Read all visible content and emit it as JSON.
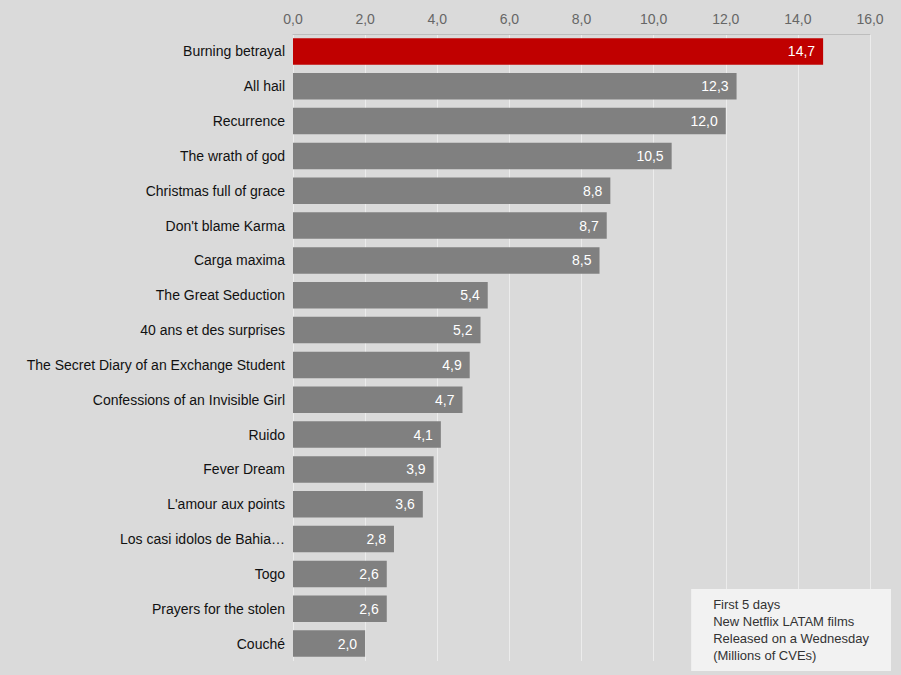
{
  "chart_data": {
    "type": "bar",
    "orientation": "horizontal",
    "annotation": "First 5 days\nNew Netflix LATAM films\nReleased on a Wednesday\n(Millions of CVEs)",
    "categories": [
      "Burning betrayal",
      "All hail",
      "Recurrence",
      "The wrath of god",
      "Christmas full of grace",
      "Don't blame Karma",
      "Carga maxima",
      "The Great Seduction",
      "40 ans et des surprises",
      "The Secret Diary of an Exchange Student",
      "Confessions of an Invisible Girl",
      "Ruido",
      "Fever Dream",
      "L'amour aux points",
      "Los casi idolos de Bahia…",
      "Togo",
      "Prayers for the stolen",
      "Couché"
    ],
    "values": [
      14.7,
      12.3,
      12.0,
      10.5,
      8.8,
      8.7,
      8.5,
      5.4,
      5.2,
      4.9,
      4.7,
      4.1,
      3.9,
      3.6,
      2.8,
      2.6,
      2.6,
      2.0
    ],
    "value_labels": [
      "14,7",
      "12,3",
      "12,0",
      "10,5",
      "8,8",
      "8,7",
      "8,5",
      "5,4",
      "5,2",
      "4,9",
      "4,7",
      "4,1",
      "3,9",
      "3,6",
      "2,8",
      "2,6",
      "2,6",
      "2,0"
    ],
    "colors": [
      "#c00000",
      "#808080",
      "#808080",
      "#808080",
      "#808080",
      "#808080",
      "#808080",
      "#808080",
      "#808080",
      "#808080",
      "#808080",
      "#808080",
      "#808080",
      "#808080",
      "#808080",
      "#808080",
      "#808080",
      "#808080"
    ],
    "xlim": [
      0,
      16
    ],
    "xticks": [
      {
        "value": 0,
        "label": "0,0"
      },
      {
        "value": 2,
        "label": "2,0"
      },
      {
        "value": 4,
        "label": "4,0"
      },
      {
        "value": 6,
        "label": "6,0"
      },
      {
        "value": 8,
        "label": "8,0"
      },
      {
        "value": 10,
        "label": "10,0"
      },
      {
        "value": 12,
        "label": "12,0"
      },
      {
        "value": 14,
        "label": "14,0"
      },
      {
        "value": 16,
        "label": "16,0"
      }
    ],
    "grid": true,
    "data_labels": true
  }
}
